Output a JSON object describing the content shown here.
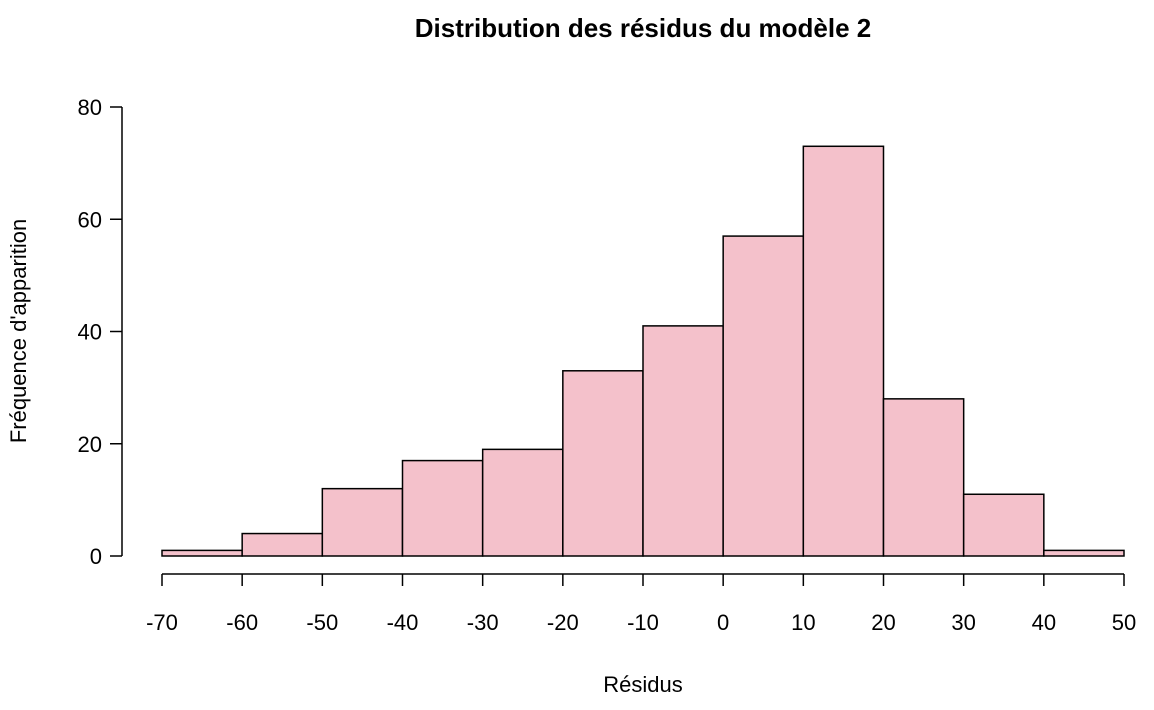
{
  "chart_data": {
    "type": "bar",
    "title": "Distribution des résidus du modèle 2",
    "xlabel": "Résidus",
    "ylabel": "Fréquence d'apparition",
    "bin_edges": [
      -70,
      -60,
      -50,
      -40,
      -30,
      -20,
      -10,
      0,
      10,
      20,
      30,
      40,
      50
    ],
    "values": [
      1,
      4,
      12,
      17,
      19,
      33,
      41,
      57,
      73,
      28,
      11,
      1
    ],
    "xlim": [
      -70,
      50
    ],
    "ylim": [
      0,
      80
    ],
    "x_ticks": [
      -70,
      -60,
      -50,
      -40,
      -30,
      -20,
      -10,
      0,
      10,
      20,
      30,
      40,
      50
    ],
    "y_ticks": [
      0,
      20,
      40,
      60,
      80
    ],
    "x_tick_labels": [
      "-70",
      "-60",
      "-50",
      "-40",
      "-30",
      "-20",
      "-10",
      "0",
      "10",
      "20",
      "30",
      "40",
      "50"
    ],
    "y_tick_labels": [
      "0",
      "20",
      "40",
      "60",
      "80"
    ],
    "bar_color": "#f4c1cb",
    "edge_color": "#000000",
    "grid": false,
    "legend": "none"
  }
}
